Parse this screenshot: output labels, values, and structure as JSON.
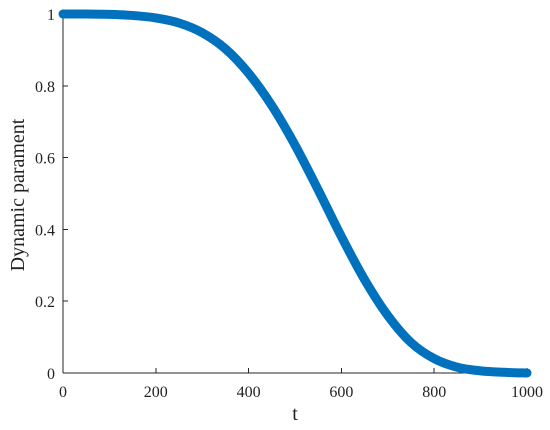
{
  "chart_data": {
    "type": "line",
    "xlabel": "t",
    "ylabel": "Dynamic parament",
    "xlim": [
      0,
      1000
    ],
    "ylim": [
      0,
      1
    ],
    "grid": false,
    "xticks": [
      0,
      200,
      400,
      600,
      800,
      1000
    ],
    "xtick_labels": [
      "0",
      "200",
      "400",
      "600",
      "800",
      "1000"
    ],
    "yticks": [
      0,
      0.2,
      0.4,
      0.6,
      0.8,
      1
    ],
    "ytick_labels": [
      "0",
      "0.2",
      "0.4",
      "0.6",
      "0.8",
      "1"
    ],
    "series": [
      {
        "color": "#0072bd",
        "x": [
          0,
          50,
          100,
          150,
          200,
          250,
          300,
          350,
          400,
          450,
          500,
          550,
          600,
          650,
          700,
          750,
          800,
          850,
          900,
          950,
          1000
        ],
        "y": [
          1.0,
          1.0,
          0.999,
          0.996,
          0.989,
          0.975,
          0.948,
          0.903,
          0.835,
          0.745,
          0.635,
          0.51,
          0.38,
          0.26,
          0.16,
          0.085,
          0.04,
          0.016,
          0.006,
          0.002,
          0.0
        ]
      }
    ]
  }
}
